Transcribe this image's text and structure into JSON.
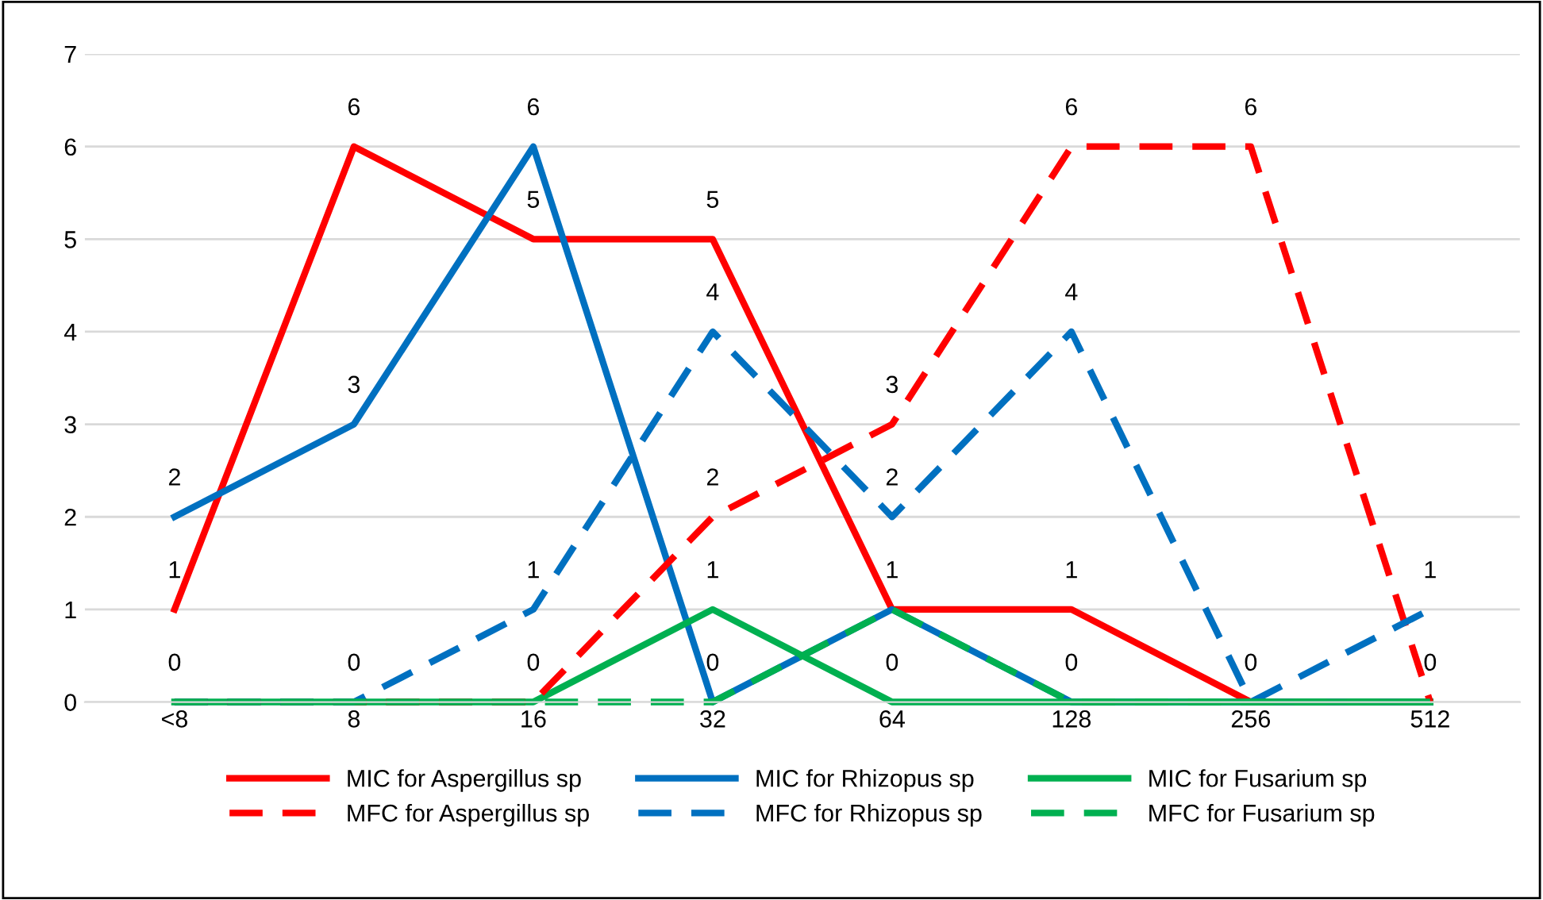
{
  "chart_data": {
    "type": "line",
    "categories": [
      "<8",
      "8",
      "16",
      "32",
      "64",
      "128",
      "256",
      "512"
    ],
    "ylim": [
      0,
      7
    ],
    "yticks": [
      0,
      1,
      2,
      3,
      4,
      5,
      6,
      7
    ],
    "grid": "y",
    "legend": "bottom",
    "marker": "none",
    "series": [
      {
        "name": "MIC for Aspergillus sp",
        "color": "#ff0000",
        "line_style": "solid",
        "values": [
          1,
          6,
          5,
          5,
          1,
          1,
          0,
          0
        ],
        "value_labels": [
          "1",
          "6",
          "5",
          "5",
          "1",
          "1",
          "0",
          "0"
        ]
      },
      {
        "name": "MIC for Rhizopus sp",
        "color": "#0070c0",
        "line_style": "solid",
        "values": [
          2,
          3,
          6,
          0,
          1,
          0,
          0,
          0
        ],
        "value_labels": [
          "2",
          "3",
          "6",
          "0",
          null,
          "0",
          null,
          null
        ]
      },
      {
        "name": "MIC for Fusarium sp",
        "color": "#00b050",
        "line_style": "solid",
        "values": [
          0,
          0,
          0,
          1,
          0,
          0,
          0,
          0
        ],
        "value_labels": [
          "0",
          "0",
          "0",
          "1",
          "0",
          null,
          null,
          null
        ]
      },
      {
        "name": "MFC for Aspergillus sp",
        "color": "#ff0000",
        "line_style": "dashed",
        "values": [
          0,
          0,
          0,
          2,
          3,
          6,
          6,
          0
        ],
        "value_labels": [
          null,
          null,
          null,
          "2",
          "3",
          "6",
          "6",
          null
        ]
      },
      {
        "name": "MFC for Rhizopus sp",
        "color": "#0070c0",
        "line_style": "dashed",
        "values": [
          0,
          0,
          1,
          4,
          2,
          4,
          0,
          1
        ],
        "value_labels": [
          null,
          null,
          "1",
          "4",
          "2",
          "4",
          null,
          "1"
        ]
      },
      {
        "name": "MFC for Fusarium sp",
        "color": "#00b050",
        "line_style": "dashed",
        "values": [
          0,
          0,
          0,
          0,
          1,
          0,
          0,
          0
        ]
      }
    ]
  }
}
